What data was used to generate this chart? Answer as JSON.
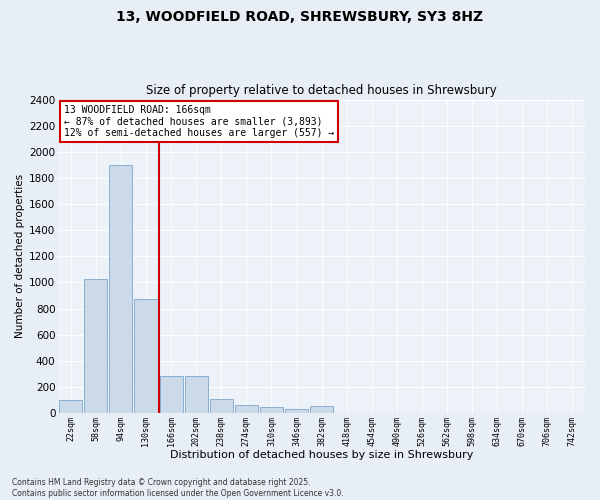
{
  "title_line1": "13, WOODFIELD ROAD, SHREWSBURY, SY3 8HZ",
  "title_line2": "Size of property relative to detached houses in Shrewsbury",
  "xlabel": "Distribution of detached houses by size in Shrewsbury",
  "ylabel": "Number of detached properties",
  "bar_color": "#ccd9e8",
  "bar_edge_color": "#7aa8cc",
  "vline_color": "#cc0000",
  "annotation_text": "13 WOODFIELD ROAD: 166sqm\n← 87% of detached houses are smaller (3,893)\n12% of semi-detached houses are larger (557) →",
  "annotation_box_color": "#cc0000",
  "footnote": "Contains HM Land Registry data © Crown copyright and database right 2025.\nContains public sector information licensed under the Open Government Licence v3.0.",
  "categories": [
    "22sqm",
    "58sqm",
    "94sqm",
    "130sqm",
    "166sqm",
    "202sqm",
    "238sqm",
    "274sqm",
    "310sqm",
    "346sqm",
    "382sqm",
    "418sqm",
    "454sqm",
    "490sqm",
    "526sqm",
    "562sqm",
    "598sqm",
    "634sqm",
    "670sqm",
    "706sqm",
    "742sqm"
  ],
  "values": [
    100,
    1025,
    1900,
    870,
    280,
    280,
    110,
    60,
    45,
    30,
    55,
    0,
    0,
    0,
    0,
    0,
    0,
    0,
    0,
    0,
    0
  ],
  "ylim": [
    0,
    2400
  ],
  "yticks": [
    0,
    200,
    400,
    600,
    800,
    1000,
    1200,
    1400,
    1600,
    1800,
    2000,
    2200,
    2400
  ],
  "bg_color": "#e8eef5",
  "plot_bg_color": "#edf2f8",
  "grid_color": "#ffffff",
  "vline_index": 4
}
